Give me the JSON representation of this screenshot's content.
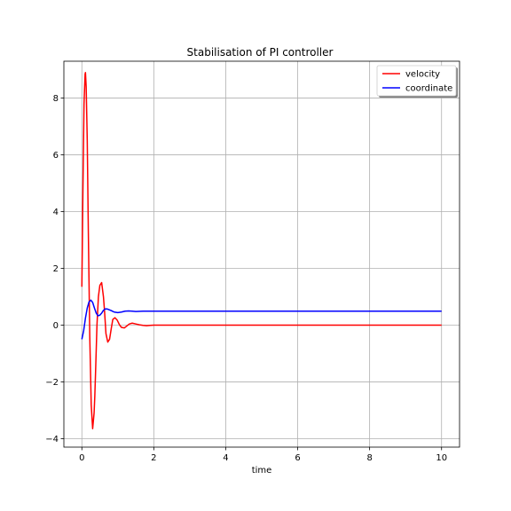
{
  "chart_data": {
    "type": "line",
    "title": "Stabilisation of PI controller",
    "xlabel": "time",
    "ylabel": "",
    "xlim": [
      -0.5,
      10.5
    ],
    "ylim": [
      -4.3,
      9.3
    ],
    "xticks": [
      0,
      2,
      4,
      6,
      8,
      10
    ],
    "yticks": [
      -4,
      -2,
      0,
      2,
      4,
      6,
      8
    ],
    "xtick_labels": [
      "0",
      "2",
      "4",
      "6",
      "8",
      "10"
    ],
    "ytick_labels": [
      "−4",
      "−2",
      "0",
      "2",
      "4",
      "6",
      "8"
    ],
    "grid": true,
    "legend_position": "top-right",
    "series": [
      {
        "name": "velocity",
        "color": "#ff0000",
        "x": [
          0,
          0.03,
          0.06,
          0.09,
          0.1,
          0.12,
          0.15,
          0.18,
          0.22,
          0.26,
          0.3,
          0.34,
          0.36,
          0.38,
          0.42,
          0.46,
          0.5,
          0.55,
          0.6,
          0.63,
          0.67,
          0.72,
          0.77,
          0.82,
          0.86,
          0.92,
          0.98,
          1.05,
          1.1,
          1.18,
          1.25,
          1.32,
          1.4,
          1.5,
          1.6,
          1.7,
          1.8,
          1.9,
          2.0,
          2.2,
          2.5,
          3,
          4,
          5,
          6,
          7,
          8,
          9,
          10
        ],
        "y": [
          1.35,
          4.8,
          7.8,
          8.85,
          8.9,
          8.4,
          6.5,
          3.3,
          -0.4,
          -2.8,
          -3.65,
          -3.1,
          -2.5,
          -1.7,
          0.0,
          1.0,
          1.4,
          1.5,
          1.0,
          0.5,
          -0.3,
          -0.6,
          -0.5,
          -0.1,
          0.2,
          0.26,
          0.18,
          0.0,
          -0.08,
          -0.1,
          -0.03,
          0.04,
          0.07,
          0.04,
          0.01,
          -0.01,
          -0.02,
          -0.01,
          0.0,
          0.0,
          0.0,
          0.0,
          0.0,
          0.0,
          0.0,
          0.0,
          0.0,
          0.0,
          0.0
        ]
      },
      {
        "name": "coordinate",
        "color": "#0000ff",
        "x": [
          0,
          0.05,
          0.1,
          0.15,
          0.2,
          0.25,
          0.3,
          0.35,
          0.4,
          0.45,
          0.5,
          0.55,
          0.6,
          0.65,
          0.7,
          0.8,
          0.9,
          1.0,
          1.1,
          1.2,
          1.3,
          1.4,
          1.5,
          1.7,
          2.0,
          2.5,
          3,
          4,
          5,
          6,
          7,
          8,
          9,
          10
        ],
        "y": [
          -0.5,
          -0.2,
          0.25,
          0.6,
          0.82,
          0.88,
          0.8,
          0.6,
          0.42,
          0.33,
          0.35,
          0.42,
          0.52,
          0.57,
          0.57,
          0.52,
          0.46,
          0.44,
          0.46,
          0.49,
          0.5,
          0.49,
          0.48,
          0.49,
          0.49,
          0.49,
          0.49,
          0.49,
          0.49,
          0.49,
          0.49,
          0.49,
          0.49,
          0.49
        ]
      }
    ]
  }
}
